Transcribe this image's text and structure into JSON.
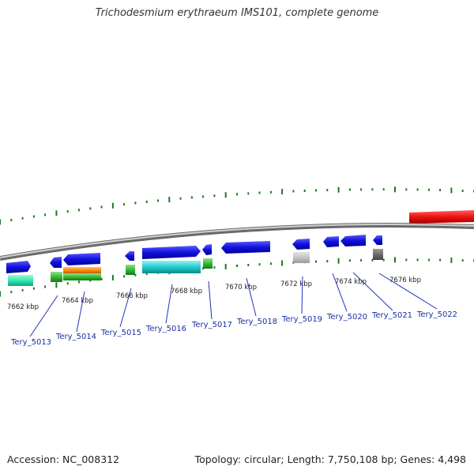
{
  "title": "Trichodesmium erythraeum IMS101, complete genome",
  "footer": {
    "accession": "Accession: NC_008312",
    "summary": "Topology: circular; Length: 7,750,108 bp; Genes: 4,498"
  },
  "colors": {
    "backbone": "#999999",
    "tick": "#1b7a1b",
    "gene_forward": "#1111dd",
    "highlight": "#ee1111",
    "label_line": "#2233bb"
  },
  "kbp_labels": [
    "7662 kbp",
    "7664 kbp",
    "7666 kbp",
    "7668 kbp",
    "7670 kbp",
    "7672 kbp",
    "7674 kbp",
    "7676 kbp"
  ],
  "gene_labels": [
    "Tery_5013",
    "Tery_5014",
    "Tery_5015",
    "Tery_5016",
    "Tery_5017",
    "Tery_5018",
    "Tery_5019",
    "Tery_5020",
    "Tery_5021",
    "Tery_5022"
  ]
}
